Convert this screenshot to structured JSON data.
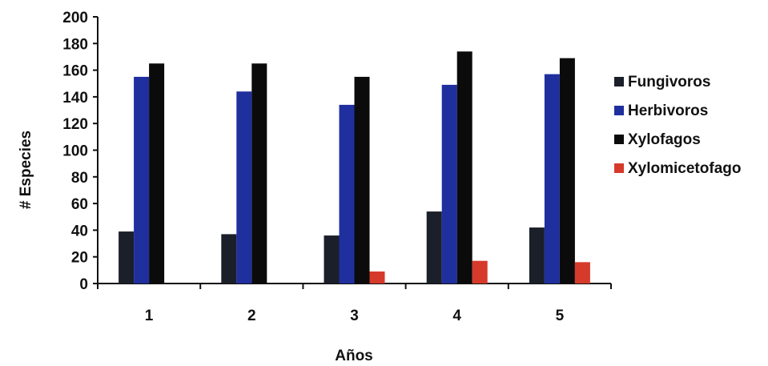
{
  "chart_data": {
    "type": "bar",
    "title": "",
    "xlabel": "Años",
    "ylabel": "# Especies",
    "categories": [
      "1",
      "2",
      "3",
      "4",
      "5"
    ],
    "ylim": [
      0,
      200
    ],
    "yticks": [
      0,
      20,
      40,
      60,
      80,
      100,
      120,
      140,
      160,
      180,
      200
    ],
    "grid": false,
    "legend_position": "right",
    "series": [
      {
        "name": "Fungivoros",
        "color": "#1b1f2a",
        "values": [
          39,
          37,
          36,
          54,
          42
        ]
      },
      {
        "name": "Herbivoros",
        "color": "#1f2f9e",
        "values": [
          155,
          144,
          134,
          149,
          157
        ]
      },
      {
        "name": "Xylofagos",
        "color": "#0b0b0b",
        "values": [
          165,
          165,
          155,
          174,
          169
        ]
      },
      {
        "name": "Xylomicetofago",
        "color": "#d63a2a",
        "values": [
          0,
          0,
          9,
          17,
          16
        ]
      }
    ]
  }
}
